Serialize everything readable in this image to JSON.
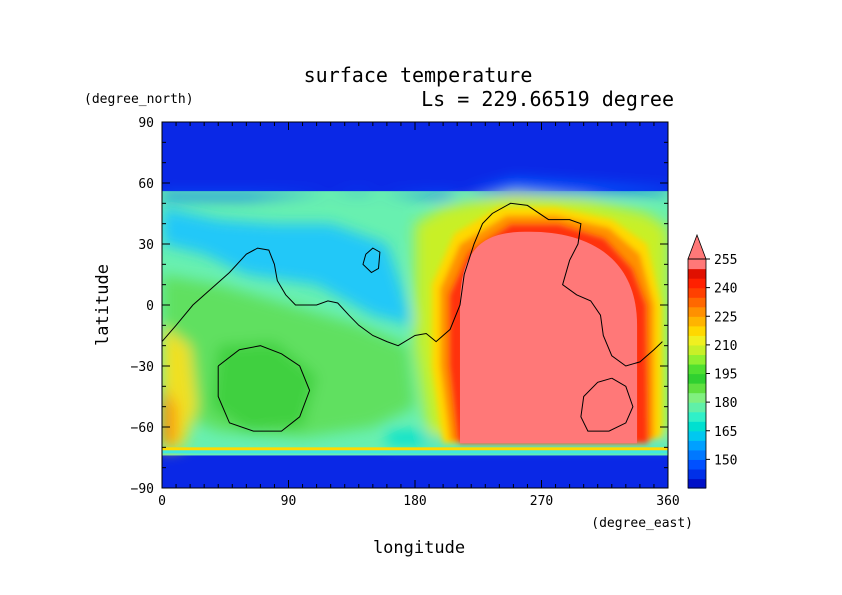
{
  "chart_data": {
    "type": "heatmap",
    "title": "surface temperature",
    "subtitle": "Ls = 229.66519 degree",
    "xlabel": "longitude",
    "ylabel": "latitude",
    "x_unit": "(degree_east)",
    "y_unit": "(degree_north)",
    "xlim": [
      0,
      360
    ],
    "ylim": [
      -90,
      90
    ],
    "x_ticks": [
      "0",
      "90",
      "180",
      "270",
      "360"
    ],
    "y_ticks": [
      "90",
      "60",
      "30",
      "0",
      "−30",
      "−60",
      "−90"
    ],
    "colorbar": {
      "levels": [
        140,
        145,
        150,
        155,
        160,
        165,
        170,
        175,
        180,
        185,
        190,
        195,
        200,
        205,
        210,
        215,
        220,
        225,
        230,
        235,
        240,
        245,
        250,
        255
      ],
      "tick_labels": [
        "150",
        "165",
        "180",
        "195",
        "210",
        "225",
        "240",
        "255"
      ],
      "colors": [
        "#0010c8",
        "#0030e8",
        "#0050ff",
        "#0078ff",
        "#00a0ff",
        "#00c8f0",
        "#00e0d0",
        "#30f0c8",
        "#60f0a8",
        "#80f080",
        "#60e040",
        "#30d030",
        "#50e030",
        "#90f030",
        "#c8f028",
        "#f0f020",
        "#ffd800",
        "#ffb400",
        "#ff9000",
        "#ff6800",
        "#ff4000",
        "#ff2000",
        "#e01000",
        "#ff7878"
      ],
      "extend": "max"
    },
    "contours": {
      "coastline": [
        [
          0,
          -18
        ],
        [
          10,
          -10
        ],
        [
          22,
          0
        ],
        [
          35,
          8
        ],
        [
          48,
          16
        ],
        [
          60,
          25
        ],
        [
          68,
          28
        ],
        [
          76,
          27
        ],
        [
          80,
          20
        ],
        [
          82,
          12
        ],
        [
          88,
          5
        ],
        [
          95,
          0
        ],
        [
          110,
          0
        ],
        [
          118,
          2
        ],
        [
          125,
          1
        ],
        [
          133,
          -5
        ],
        [
          140,
          -10
        ],
        [
          150,
          -15
        ],
        [
          160,
          -18
        ],
        [
          168,
          -20
        ],
        [
          180,
          -15
        ],
        [
          188,
          -14
        ],
        [
          195,
          -18
        ],
        [
          205,
          -12
        ],
        [
          212,
          0
        ],
        [
          215,
          15
        ],
        [
          222,
          30
        ],
        [
          228,
          40
        ],
        [
          235,
          45
        ],
        [
          248,
          50
        ],
        [
          260,
          49
        ],
        [
          275,
          42
        ],
        [
          290,
          42
        ],
        [
          298,
          40
        ],
        [
          296,
          30
        ],
        [
          290,
          22
        ],
        [
          285,
          10
        ],
        [
          295,
          5
        ],
        [
          305,
          2
        ],
        [
          312,
          -5
        ],
        [
          314,
          -15
        ],
        [
          320,
          -25
        ],
        [
          330,
          -30
        ],
        [
          340,
          -28
        ],
        [
          350,
          -22
        ],
        [
          356,
          -18
        ]
      ],
      "island": [
        [
          145,
          25
        ],
        [
          150,
          28
        ],
        [
          155,
          26
        ],
        [
          154,
          18
        ],
        [
          149,
          16
        ],
        [
          143,
          20
        ],
        [
          145,
          25
        ]
      ],
      "basin_hellas": [
        [
          40,
          -30
        ],
        [
          55,
          -22
        ],
        [
          70,
          -20
        ],
        [
          85,
          -24
        ],
        [
          98,
          -30
        ],
        [
          105,
          -42
        ],
        [
          98,
          -55
        ],
        [
          85,
          -62
        ],
        [
          65,
          -62
        ],
        [
          48,
          -58
        ],
        [
          40,
          -45
        ],
        [
          40,
          -30
        ]
      ],
      "basin_argyre": [
        [
          320,
          -36
        ],
        [
          330,
          -40
        ],
        [
          335,
          -50
        ],
        [
          330,
          -58
        ],
        [
          318,
          -62
        ],
        [
          303,
          -62
        ],
        [
          298,
          -55
        ],
        [
          300,
          -45
        ],
        [
          310,
          -38
        ],
        [
          320,
          -36
        ]
      ]
    }
  }
}
